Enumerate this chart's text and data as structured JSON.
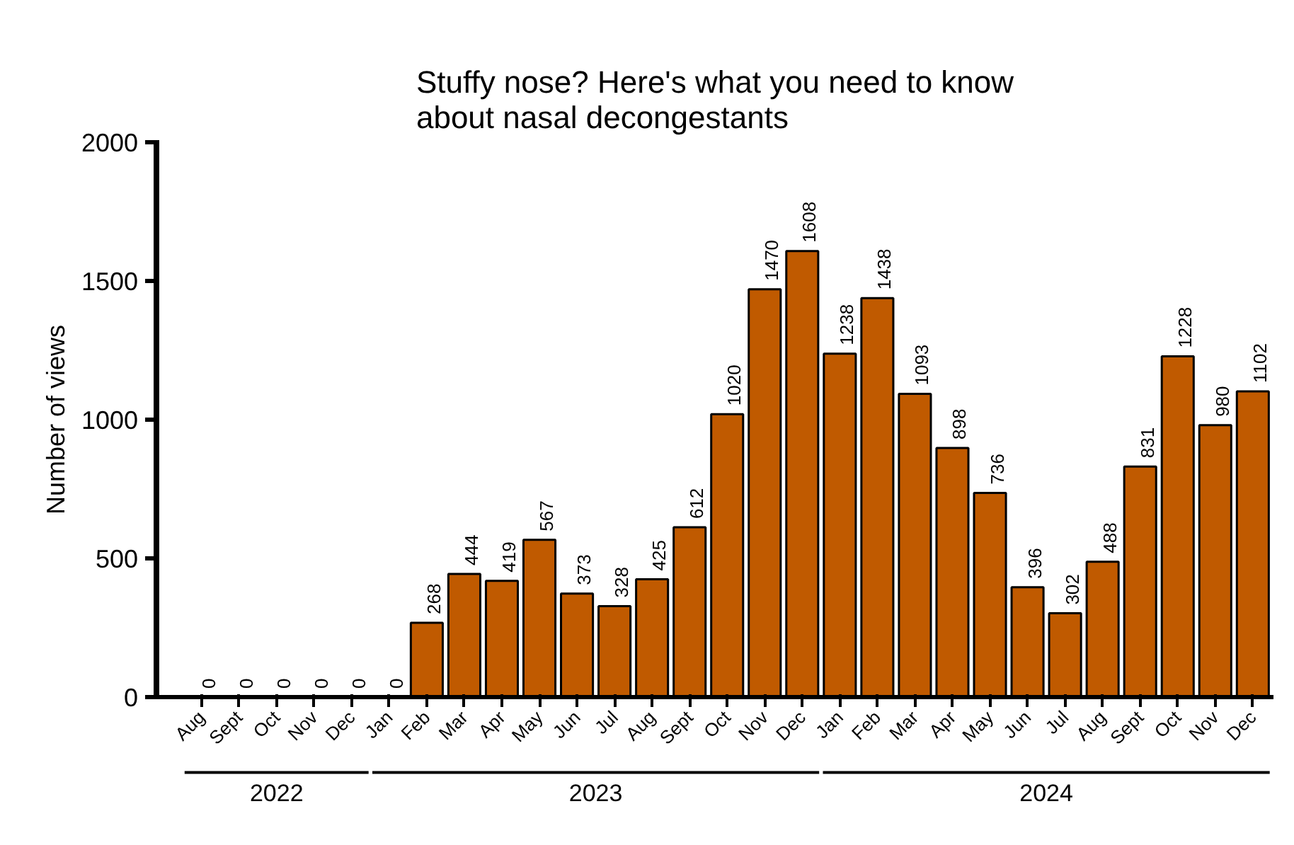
{
  "chart_data": {
    "type": "bar",
    "title": "Stuffy nose? Here's what you need to know\nabout nasal decongestants",
    "ylabel": "Number of views",
    "categories": [
      "Aug",
      "Sept",
      "Oct",
      "Nov",
      "Dec",
      "Jan",
      "Feb",
      "Mar",
      "Apr",
      "May",
      "Jun",
      "Jul",
      "Aug",
      "Sept",
      "Oct",
      "Nov",
      "Dec",
      "Jan",
      "Feb",
      "Mar",
      "Apr",
      "May",
      "Jun",
      "Jul",
      "Aug",
      "Sept",
      "Oct",
      "Nov",
      "Dec"
    ],
    "values": [
      0,
      0,
      0,
      0,
      0,
      0,
      268,
      444,
      419,
      567,
      373,
      328,
      425,
      612,
      1020,
      1470,
      1608,
      1238,
      1438,
      1093,
      898,
      736,
      396,
      302,
      488,
      831,
      1228,
      980,
      1102
    ],
    "color": "#c05a00",
    "ylim": [
      0,
      2000
    ],
    "yticks": [
      0,
      500,
      1000,
      1500,
      2000
    ],
    "data_labels": true,
    "grid": false,
    "annotations": [
      "2022",
      "2023",
      "2024"
    ]
  }
}
